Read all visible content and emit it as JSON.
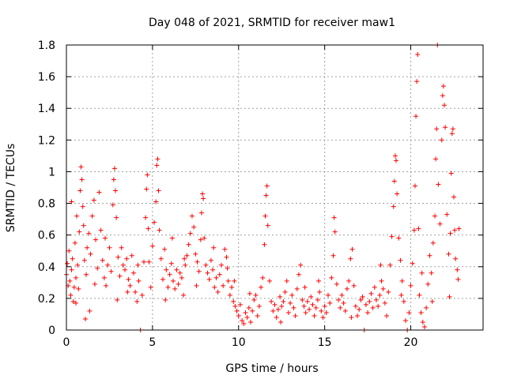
{
  "chart_data": {
    "type": "scatter",
    "title": "Day 048 of 2021, SRMTID for receiver maw1",
    "xlabel": "GPS time / hours",
    "ylabel": "SRMTID / TECUs",
    "xlim": [
      0,
      24.2
    ],
    "ylim": [
      0,
      1.8
    ],
    "x_ticks": [
      0,
      5,
      10,
      15,
      20
    ],
    "x_tick_labels": [
      "0",
      "5",
      "10",
      "15",
      "20"
    ],
    "y_ticks": [
      0,
      0.2,
      0.4,
      0.6,
      0.8,
      1.0,
      1.2,
      1.4,
      1.6,
      1.8
    ],
    "y_tick_labels": [
      "0",
      "0.2",
      "0.4",
      "0.6",
      "0.8",
      "1",
      "1.2",
      "1.4",
      "1.6",
      "1.8"
    ],
    "grid": true,
    "marker": "+",
    "color": "#ff0000",
    "series": [
      {
        "name": "maw1",
        "points": [
          [
            0.0,
            0.35
          ],
          [
            0.05,
            0.42
          ],
          [
            0.1,
            0.28
          ],
          [
            0.15,
            0.5
          ],
          [
            0.2,
            0.31
          ],
          [
            0.25,
            0.22
          ],
          [
            0.3,
            0.38
          ],
          [
            0.35,
            0.45
          ],
          [
            0.4,
            0.18
          ],
          [
            0.45,
            0.27
          ],
          [
            0.5,
            0.55
          ],
          [
            0.55,
            0.33
          ],
          [
            0.6,
            0.72
          ],
          [
            0.65,
            0.41
          ],
          [
            0.7,
            0.26
          ],
          [
            0.75,
            0.62
          ],
          [
            0.8,
            0.88
          ],
          [
            0.85,
            1.03
          ],
          [
            0.9,
            0.95
          ],
          [
            0.95,
            0.78
          ],
          [
            1.0,
            0.66
          ],
          [
            1.05,
            0.44
          ],
          [
            1.1,
            0.07
          ],
          [
            1.15,
            0.35
          ],
          [
            1.2,
            0.52
          ],
          [
            1.3,
            0.61
          ],
          [
            1.4,
            0.48
          ],
          [
            1.5,
            0.72
          ],
          [
            1.6,
            0.82
          ],
          [
            1.7,
            0.57
          ],
          [
            1.8,
            0.39
          ],
          [
            1.9,
            0.87
          ],
          [
            2.0,
            0.63
          ],
          [
            2.1,
            0.44
          ],
          [
            2.2,
            0.33
          ],
          [
            2.3,
            0.28
          ],
          [
            2.4,
            0.41
          ],
          [
            2.5,
            0.52
          ],
          [
            2.6,
            0.37
          ],
          [
            2.7,
            0.79
          ],
          [
            2.75,
            0.95
          ],
          [
            2.8,
            1.02
          ],
          [
            2.85,
            0.88
          ],
          [
            2.9,
            0.71
          ],
          [
            3.0,
            0.46
          ],
          [
            3.1,
            0.34
          ],
          [
            3.2,
            0.52
          ],
          [
            3.3,
            0.41
          ],
          [
            3.4,
            0.38
          ],
          [
            3.5,
            0.45
          ],
          [
            3.6,
            0.32
          ],
          [
            3.7,
            0.28
          ],
          [
            3.8,
            0.47
          ],
          [
            3.9,
            0.36
          ],
          [
            4.0,
            0.24
          ],
          [
            4.1,
            0.18
          ],
          [
            4.2,
            0.31
          ],
          [
            4.3,
            0.0
          ],
          [
            4.4,
            0.22
          ],
          [
            4.5,
            0.43
          ],
          [
            4.6,
            0.71
          ],
          [
            4.65,
            0.89
          ],
          [
            4.7,
            0.98
          ],
          [
            4.75,
            0.64
          ],
          [
            4.8,
            0.43
          ],
          [
            4.9,
            0.27
          ],
          [
            5.0,
            0.53
          ],
          [
            5.1,
            0.68
          ],
          [
            5.2,
            0.81
          ],
          [
            5.25,
            1.04
          ],
          [
            5.3,
            1.08
          ],
          [
            5.35,
            0.88
          ],
          [
            5.4,
            0.63
          ],
          [
            5.5,
            0.45
          ],
          [
            5.6,
            0.32
          ],
          [
            5.7,
            0.51
          ],
          [
            5.8,
            0.38
          ],
          [
            5.9,
            0.27
          ],
          [
            6.0,
            0.35
          ],
          [
            6.1,
            0.42
          ],
          [
            6.2,
            0.31
          ],
          [
            6.3,
            0.26
          ],
          [
            6.4,
            0.38
          ],
          [
            6.5,
            0.29
          ],
          [
            6.6,
            0.36
          ],
          [
            6.7,
            0.33
          ],
          [
            6.8,
            0.22
          ],
          [
            6.9,
            0.41
          ],
          [
            7.0,
            0.47
          ],
          [
            7.1,
            0.54
          ],
          [
            7.2,
            0.61
          ],
          [
            7.3,
            0.72
          ],
          [
            7.4,
            0.65
          ],
          [
            7.5,
            0.48
          ],
          [
            7.6,
            0.43
          ],
          [
            7.7,
            0.37
          ],
          [
            7.8,
            0.57
          ],
          [
            7.85,
            0.74
          ],
          [
            7.9,
            0.86
          ],
          [
            7.95,
            0.83
          ],
          [
            8.0,
            0.58
          ],
          [
            8.1,
            0.41
          ],
          [
            8.2,
            0.36
          ],
          [
            8.3,
            0.32
          ],
          [
            8.4,
            0.44
          ],
          [
            8.5,
            0.38
          ],
          [
            8.6,
            0.27
          ],
          [
            8.7,
            0.33
          ],
          [
            8.8,
            0.24
          ],
          [
            8.9,
            0.35
          ],
          [
            9.0,
            0.41
          ],
          [
            9.1,
            0.28
          ],
          [
            9.2,
            0.51
          ],
          [
            9.3,
            0.46
          ],
          [
            9.4,
            0.31
          ],
          [
            9.5,
            0.22
          ],
          [
            9.6,
            0.27
          ],
          [
            9.7,
            0.18
          ],
          [
            9.8,
            0.15
          ],
          [
            9.9,
            0.12
          ],
          [
            10.0,
            0.09
          ],
          [
            10.1,
            0.16
          ],
          [
            10.2,
            0.06
          ],
          [
            10.3,
            0.04
          ],
          [
            10.4,
            0.11
          ],
          [
            10.5,
            0.08
          ],
          [
            10.6,
            0.14
          ],
          [
            10.7,
            0.05
          ],
          [
            10.8,
            0.12
          ],
          [
            10.9,
            0.19
          ],
          [
            11.0,
            0.22
          ],
          [
            11.1,
            0.09
          ],
          [
            11.2,
            0.15
          ],
          [
            11.3,
            0.27
          ],
          [
            11.4,
            0.33
          ],
          [
            11.5,
            0.54
          ],
          [
            11.55,
            0.72
          ],
          [
            11.6,
            0.85
          ],
          [
            11.65,
            0.91
          ],
          [
            11.7,
            0.66
          ],
          [
            11.8,
            0.31
          ],
          [
            11.9,
            0.18
          ],
          [
            12.0,
            0.12
          ],
          [
            12.1,
            0.16
          ],
          [
            12.2,
            0.08
          ],
          [
            12.3,
            0.13
          ],
          [
            12.4,
            0.21
          ],
          [
            12.5,
            0.15
          ],
          [
            12.6,
            0.18
          ],
          [
            12.7,
            0.24
          ],
          [
            12.8,
            0.31
          ],
          [
            12.9,
            0.11
          ],
          [
            13.0,
            0.17
          ],
          [
            13.1,
            0.22
          ],
          [
            13.2,
            0.14
          ],
          [
            13.3,
            0.09
          ],
          [
            13.4,
            0.26
          ],
          [
            13.5,
            0.35
          ],
          [
            13.6,
            0.41
          ],
          [
            13.7,
            0.19
          ],
          [
            13.8,
            0.15
          ],
          [
            13.9,
            0.11
          ],
          [
            14.0,
            0.18
          ],
          [
            14.1,
            0.13
          ],
          [
            14.2,
            0.21
          ],
          [
            14.3,
            0.16
          ],
          [
            14.4,
            0.09
          ],
          [
            14.5,
            0.14
          ],
          [
            14.6,
            0.19
          ],
          [
            14.7,
            0.24
          ],
          [
            14.8,
            0.12
          ],
          [
            14.9,
            0.08
          ],
          [
            15.0,
            0.15
          ],
          [
            15.1,
            0.11
          ],
          [
            15.2,
            0.22
          ],
          [
            15.3,
            0.17
          ],
          [
            15.4,
            0.33
          ],
          [
            15.5,
            0.47
          ],
          [
            15.55,
            0.71
          ],
          [
            15.6,
            0.62
          ],
          [
            15.7,
            0.29
          ],
          [
            15.8,
            0.19
          ],
          [
            15.9,
            0.14
          ],
          [
            16.0,
            0.22
          ],
          [
            16.1,
            0.17
          ],
          [
            16.2,
            0.12
          ],
          [
            16.3,
            0.26
          ],
          [
            16.4,
            0.31
          ],
          [
            16.5,
            0.45
          ],
          [
            16.6,
            0.51
          ],
          [
            16.7,
            0.28
          ],
          [
            16.8,
            0.15
          ],
          [
            16.9,
            0.09
          ],
          [
            17.0,
            0.13
          ],
          [
            17.1,
            0.19
          ],
          [
            17.2,
            0.21
          ],
          [
            17.3,
            0.0
          ],
          [
            17.4,
            0.16
          ],
          [
            17.5,
            0.11
          ],
          [
            17.6,
            0.18
          ],
          [
            17.7,
            0.23
          ],
          [
            17.8,
            0.14
          ],
          [
            17.9,
            0.27
          ],
          [
            18.0,
            0.19
          ],
          [
            18.1,
            0.15
          ],
          [
            18.2,
            0.22
          ],
          [
            18.3,
            0.31
          ],
          [
            18.4,
            0.26
          ],
          [
            18.5,
            0.17
          ],
          [
            18.6,
            0.09
          ],
          [
            18.7,
            0.24
          ],
          [
            18.8,
            0.41
          ],
          [
            18.9,
            0.59
          ],
          [
            19.0,
            0.78
          ],
          [
            19.05,
            0.94
          ],
          [
            19.1,
            1.1
          ],
          [
            19.15,
            1.07
          ],
          [
            19.2,
            0.86
          ],
          [
            19.3,
            0.58
          ],
          [
            19.4,
            0.44
          ],
          [
            19.5,
            0.31
          ],
          [
            19.6,
            0.18
          ],
          [
            19.7,
            0.06
          ],
          [
            19.8,
            0.0
          ],
          [
            19.9,
            0.11
          ],
          [
            20.0,
            0.28
          ],
          [
            20.1,
            0.42
          ],
          [
            20.2,
            0.63
          ],
          [
            20.25,
            0.91
          ],
          [
            20.3,
            1.35
          ],
          [
            20.35,
            1.57
          ],
          [
            20.4,
            1.74
          ],
          [
            20.45,
            0.64
          ],
          [
            20.5,
            0.22
          ],
          [
            20.6,
            0.11
          ],
          [
            20.7,
            0.05
          ],
          [
            20.8,
            0.02
          ],
          [
            20.9,
            0.14
          ],
          [
            21.0,
            0.29
          ],
          [
            21.1,
            0.47
          ],
          [
            21.2,
            0.36
          ],
          [
            21.3,
            0.55
          ],
          [
            21.4,
            0.72
          ],
          [
            21.45,
            1.08
          ],
          [
            21.5,
            1.27
          ],
          [
            21.55,
            1.8
          ],
          [
            21.6,
            0.92
          ],
          [
            21.7,
            0.67
          ],
          [
            21.8,
            1.2
          ],
          [
            21.85,
            1.48
          ],
          [
            21.9,
            1.54
          ],
          [
            21.95,
            1.42
          ],
          [
            22.0,
            1.28
          ],
          [
            22.1,
            0.73
          ],
          [
            22.2,
            0.48
          ],
          [
            22.3,
            0.61
          ],
          [
            22.35,
            0.99
          ],
          [
            22.4,
            1.24
          ],
          [
            22.45,
            1.27
          ],
          [
            22.5,
            0.84
          ],
          [
            22.55,
            0.63
          ],
          [
            22.6,
            0.45
          ],
          [
            22.7,
            0.38
          ],
          [
            22.75,
            0.32
          ],
          [
            22.8,
            0.64
          ],
          [
            0.3,
            0.81
          ],
          [
            1.35,
            0.12
          ],
          [
            2.25,
            0.58
          ],
          [
            3.55,
            0.24
          ],
          [
            5.75,
            0.19
          ],
          [
            6.85,
            0.45
          ],
          [
            8.55,
            0.52
          ],
          [
            9.35,
            0.39
          ],
          [
            10.65,
            0.23
          ],
          [
            12.45,
            0.05
          ],
          [
            13.85,
            0.27
          ],
          [
            14.65,
            0.31
          ],
          [
            16.55,
            0.08
          ],
          [
            18.25,
            0.41
          ],
          [
            19.45,
            0.22
          ],
          [
            20.65,
            0.36
          ],
          [
            21.25,
            0.18
          ],
          [
            22.25,
            0.21
          ],
          [
            0.55,
            0.17
          ],
          [
            1.65,
            0.29
          ],
          [
            2.95,
            0.19
          ],
          [
            4.15,
            0.41
          ],
          [
            6.15,
            0.58
          ],
          [
            7.55,
            0.28
          ],
          [
            9.75,
            0.31
          ]
        ]
      }
    ]
  }
}
